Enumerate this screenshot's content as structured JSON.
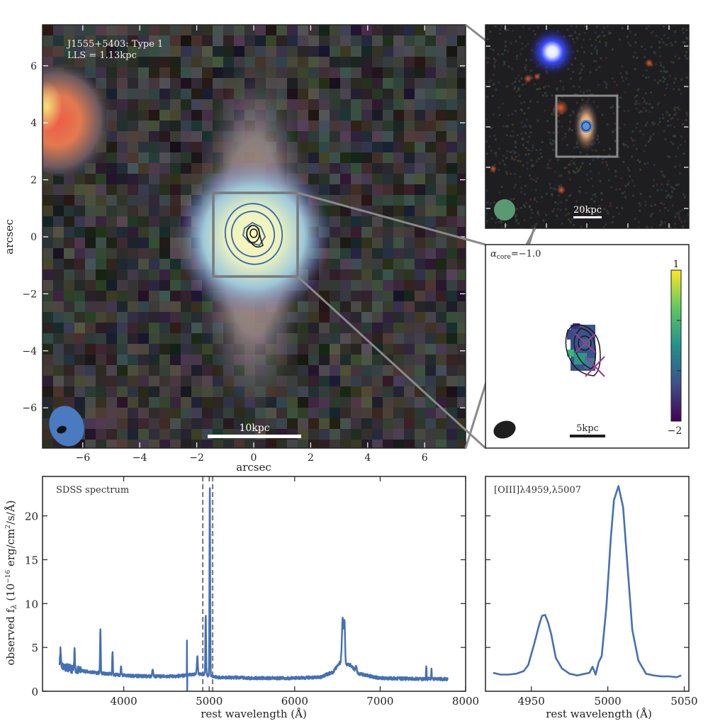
{
  "figure": {
    "panels": {
      "main_image": {
        "title_line1": "J1555+5403: Type 1",
        "title_line2": "LLS = 1.13kpc",
        "xlabel": "arcsec",
        "ylabel": "arcsec",
        "xticks": [
          "−6",
          "−4",
          "−2",
          "0",
          "2",
          "4",
          "6"
        ],
        "yticks": [
          "6",
          "4",
          "2",
          "0",
          "−2",
          "−4",
          "−6"
        ],
        "xtick_values": [
          -6,
          -4,
          -2,
          0,
          2,
          4,
          6
        ],
        "ytick_values": [
          6,
          4,
          2,
          0,
          -2,
          -4,
          -6
        ],
        "xlim": [
          -7.4,
          7.4
        ],
        "ylim": [
          -7.4,
          7.4
        ],
        "scalebar_label": "10kpc",
        "zoom_box_arcsec": [
          -1.5,
          1.5
        ],
        "beam_colors": {
          "large": "#4a7abf",
          "small": "#111111"
        },
        "contour_colors": {
          "blue": "#3a64b0",
          "black": "#1a1a1a"
        }
      },
      "wide_image": {
        "scalebar_label": "20kpc",
        "beam_color": "#5a9a72"
      },
      "spectral_index": {
        "label_alpha": "α",
        "label_sub": "core",
        "label_value": "=−1.0",
        "scalebar_label": "5kpc",
        "colorbar_max_label": "1",
        "colorbar_min_label": "−2",
        "colorbar_range": [
          -2,
          1
        ],
        "colorbar_colors": [
          "#440154",
          "#3b528b",
          "#21918c",
          "#5ec962",
          "#fde725"
        ],
        "cross_color": "#a23c8c"
      },
      "spectrum": {
        "label": "SDSS spectrum",
        "xlabel": "rest wavelength (Å)",
        "ylabel": "observed f",
        "ylabel_sub": "λ",
        "ylabel_unit": " (10",
        "ylabel_exp": "−16",
        "ylabel_tail": " erg/cm",
        "ylabel_exp2": "2",
        "ylabel_end": "/s/Å)",
        "line_color": "#4470b4"
      },
      "oiii": {
        "label": "[OIII]λ4959,λ5007",
        "xlabel": "rest wavelength (Å)"
      }
    }
  },
  "chart_data": [
    {
      "type": "line",
      "title": "SDSS spectrum",
      "xlabel": "rest wavelength (Å)",
      "ylabel": "observed f_λ (10^-16 erg/cm^2/s/Å)",
      "xlim": [
        3050,
        8000
      ],
      "ylim": [
        0,
        24.5
      ],
      "xticks": [
        4000,
        5000,
        6000,
        7000,
        8000
      ],
      "yticks": [
        0,
        5,
        10,
        15,
        20
      ],
      "grid": false,
      "continuum": [
        [
          3250,
          3.0
        ],
        [
          3400,
          2.5
        ],
        [
          3600,
          2.2
        ],
        [
          3800,
          2.0
        ],
        [
          4000,
          1.8
        ],
        [
          4300,
          1.7
        ],
        [
          4600,
          1.7
        ],
        [
          4800,
          1.9
        ],
        [
          4900,
          2.0
        ],
        [
          5100,
          1.6
        ],
        [
          5500,
          1.5
        ],
        [
          6000,
          1.5
        ],
        [
          6300,
          1.6
        ],
        [
          6450,
          2.2
        ],
        [
          6520,
          3.2
        ],
        [
          6650,
          3.0
        ],
        [
          6750,
          2.0
        ],
        [
          7000,
          1.5
        ],
        [
          7500,
          1.4
        ],
        [
          7790,
          1.4
        ]
      ],
      "emission_lines": [
        {
          "x": 3260,
          "peak": 4.7,
          "width": 6
        },
        {
          "x": 3426,
          "peak": 5.0,
          "width": 4
        },
        {
          "x": 3727,
          "peak": 7.1,
          "width": 4
        },
        {
          "x": 3869,
          "peak": 4.4,
          "width": 4
        },
        {
          "x": 3968,
          "peak": 2.9,
          "width": 4
        },
        {
          "x": 4340,
          "peak": 2.5,
          "width": 6
        },
        {
          "x": 4861,
          "peak": 3.9,
          "width": 6
        },
        {
          "x": 4959,
          "peak": 8.8,
          "width": 4
        },
        {
          "x": 5007,
          "peak": 23.4,
          "width": 4
        },
        {
          "x": 6563,
          "peak": 8.3,
          "width": 10
        },
        {
          "x": 6584,
          "peak": 7.5,
          "width": 6
        },
        {
          "x": 6720,
          "peak": 3.0,
          "width": 6
        },
        {
          "x": 7540,
          "peak": 2.9,
          "width": 3
        },
        {
          "x": 7600,
          "peak": 2.5,
          "width": 3
        }
      ],
      "artifact": {
        "x": 4740,
        "peak": 5.8,
        "min": 0.0
      },
      "vlines_dashed": [
        4925,
        5040
      ],
      "series": [
        {
          "name": "SDSS spectrum",
          "color": "#4470b4"
        }
      ]
    },
    {
      "type": "line",
      "title": "[OIII]λ4959,λ5007",
      "xlabel": "rest wavelength (Å)",
      "xlim": [
        4920,
        5053
      ],
      "ylim": [
        0,
        24.5
      ],
      "xticks": [
        4950,
        5000,
        5050
      ],
      "grid": false,
      "series": [
        {
          "name": "[OIII]",
          "color": "#4470b4",
          "x": [
            4925,
            4930,
            4935,
            4940,
            4945,
            4948,
            4952,
            4955,
            4957,
            4959,
            4961,
            4963,
            4966,
            4970,
            4975,
            4980,
            4985,
            4988,
            4990,
            4992,
            4994,
            4996,
            4999,
            5002,
            5004,
            5007,
            5010,
            5013,
            5016,
            5020,
            5025,
            5030,
            5035,
            5040,
            5045,
            5048
          ],
          "y": [
            2.1,
            1.9,
            1.9,
            2.0,
            2.3,
            3.0,
            5.5,
            7.5,
            8.6,
            8.7,
            7.8,
            6.5,
            3.8,
            2.6,
            2.0,
            1.8,
            2.0,
            2.1,
            2.8,
            1.9,
            3.3,
            4.0,
            9.5,
            17.5,
            21.8,
            23.4,
            21.0,
            14.0,
            7.0,
            3.5,
            2.0,
            1.8,
            1.7,
            1.7,
            1.6,
            1.8
          ]
        }
      ]
    }
  ]
}
